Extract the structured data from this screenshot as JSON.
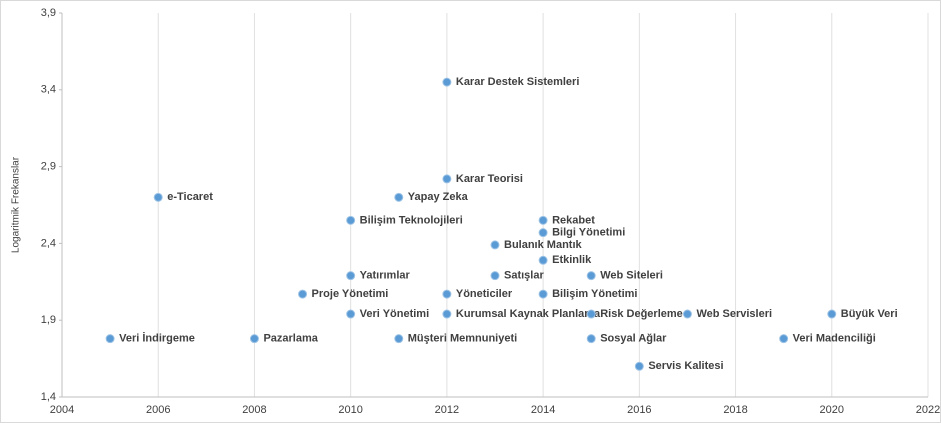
{
  "chart_data": {
    "type": "scatter",
    "y_label": "Logaritmik Frekanslar",
    "color": "#5b9bd5",
    "grid": true,
    "xlim": [
      2004,
      2022
    ],
    "xticks": [
      2004,
      2006,
      2008,
      2010,
      2012,
      2014,
      2016,
      2018,
      2020,
      2022
    ],
    "ylim": [
      1.4,
      3.9
    ],
    "yticks": [
      {
        "value": 1.4,
        "label": "1,4"
      },
      {
        "value": 1.9,
        "label": "1,9"
      },
      {
        "value": 2.4,
        "label": "2,4"
      },
      {
        "value": 2.9,
        "label": "2,9"
      },
      {
        "value": 3.4,
        "label": "3,4"
      },
      {
        "value": 3.9,
        "label": "3,9"
      }
    ],
    "labels": [
      "Karar Destek Sistemleri",
      "Karar Teorisi",
      "e-Ticaret",
      "Yapay Zeka",
      "Bilişim Teknolojileri",
      "Rekabet",
      "Bilgi Yönetimi",
      "Bulanık Mantık",
      "Etkinlik",
      "Yatırımlar",
      "Satışlar",
      "Web Siteleri",
      "Proje Yönetimi",
      "Yöneticiler",
      "Bilişim Yönetimi",
      "Veri Yönetimi",
      "Kurumsal Kaynak Planlama",
      "Risk Değerleme",
      "Web Servisleri",
      "Büyük Veri",
      "Veri İndirgeme",
      "Pazarlama",
      "Müşteri Memnuniyeti",
      "Sosyal Ağlar",
      "Veri Madenciliği",
      "Servis Kalitesi"
    ],
    "x": [
      2012,
      2012,
      2006,
      2011,
      2010,
      2014,
      2014,
      2013,
      2014,
      2010,
      2013,
      2015,
      2009,
      2012,
      2014,
      2010,
      2012,
      2015,
      2017,
      2020,
      2005,
      2008,
      2011,
      2015,
      2019,
      2016
    ],
    "values": [
      3.45,
      2.82,
      2.7,
      2.7,
      2.55,
      2.55,
      2.47,
      2.39,
      2.29,
      2.19,
      2.19,
      2.19,
      2.07,
      2.07,
      2.07,
      1.94,
      1.94,
      1.94,
      1.94,
      1.94,
      1.78,
      1.78,
      1.78,
      1.78,
      1.78,
      1.6
    ]
  }
}
